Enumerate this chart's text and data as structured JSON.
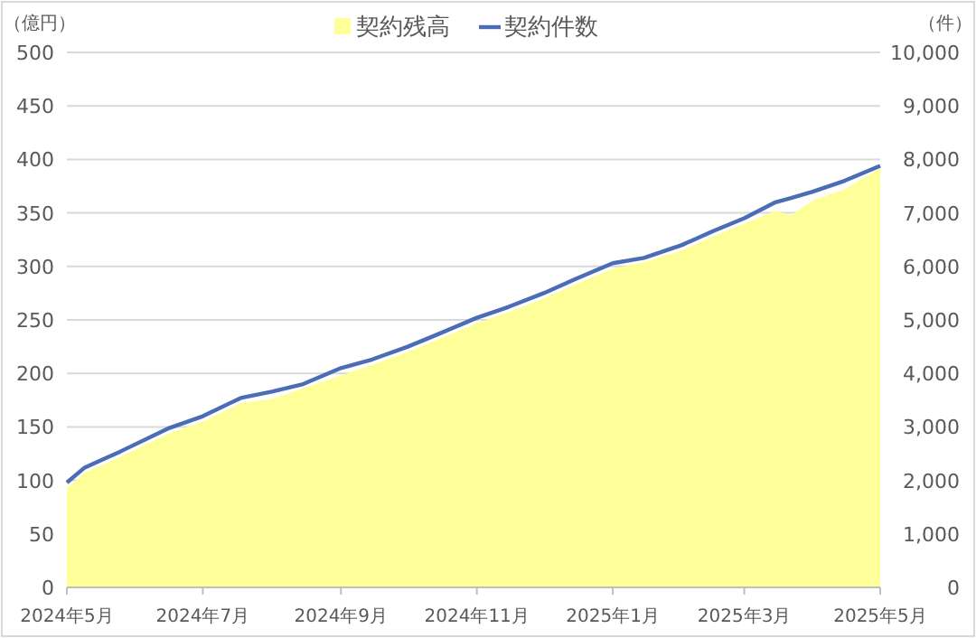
{
  "chart_data": {
    "type": "area",
    "ylabel": "（億円）",
    "y2label": "（件）",
    "x": [
      "2024-05-01",
      "2024-05-09",
      "2024-05-25",
      "2024-06-16",
      "2024-07-01",
      "2024-07-18",
      "2024-08-01",
      "2024-08-15",
      "2024-09-01",
      "2024-09-15",
      "2024-10-01",
      "2024-10-15",
      "2024-11-01",
      "2024-11-15",
      "2024-12-01",
      "2024-12-15",
      "2025-01-01",
      "2025-01-15",
      "2025-02-01",
      "2025-02-15",
      "2025-03-01",
      "2025-03-15",
      "2025-03-22",
      "2025-04-01",
      "2025-04-15",
      "2025-05-01"
    ],
    "series": [
      {
        "name": "契約残高",
        "color": "#ffff99",
        "values": [
          93,
          107,
          122,
          144,
          155,
          172,
          176,
          186,
          198,
          208,
          220,
          232,
          247,
          257,
          270,
          283,
          298,
          304,
          315,
          328,
          340,
          352,
          348,
          362,
          372,
          392
        ]
      },
      {
        "name": "契約件数",
        "type": "line",
        "axis": "y2",
        "color": "#4a6db5",
        "values": [
          1960,
          2240,
          2540,
          2980,
          3200,
          3540,
          3660,
          3800,
          4100,
          4260,
          4500,
          4740,
          5040,
          5240,
          5500,
          5760,
          6060,
          6160,
          6400,
          6660,
          6900,
          7200,
          7280,
          7400,
          7600,
          7880
        ]
      }
    ],
    "xlim": [
      "2024-05-01",
      "2025-05-01"
    ],
    "xticks": [
      {
        "value": "2024-05-01",
        "label": "2024年5月"
      },
      {
        "value": "2024-07-01",
        "label": "2024年7月"
      },
      {
        "value": "2024-09-01",
        "label": "2024年9月"
      },
      {
        "value": "2024-11-01",
        "label": "2024年11月"
      },
      {
        "value": "2025-01-01",
        "label": "2025年1月"
      },
      {
        "value": "2025-03-01",
        "label": "2025年3月"
      },
      {
        "value": "2025-05-01",
        "label": "2025年5月"
      }
    ],
    "ylim": [
      0,
      500
    ],
    "yticks": [
      0,
      50,
      100,
      150,
      200,
      250,
      300,
      350,
      400,
      450,
      500
    ],
    "y2lim": [
      0,
      10000
    ],
    "y2ticks": [
      {
        "value": 0,
        "label": "0"
      },
      {
        "value": 1000,
        "label": "1,000"
      },
      {
        "value": 2000,
        "label": "2,000"
      },
      {
        "value": 3000,
        "label": "3,000"
      },
      {
        "value": 4000,
        "label": "4,000"
      },
      {
        "value": 5000,
        "label": "5,000"
      },
      {
        "value": 6000,
        "label": "6,000"
      },
      {
        "value": 7000,
        "label": "7,000"
      },
      {
        "value": 8000,
        "label": "8,000"
      },
      {
        "value": 9000,
        "label": "9,000"
      },
      {
        "value": 10000,
        "label": "10,000"
      }
    ],
    "grid": "y",
    "legend": "top",
    "marker": "none"
  }
}
